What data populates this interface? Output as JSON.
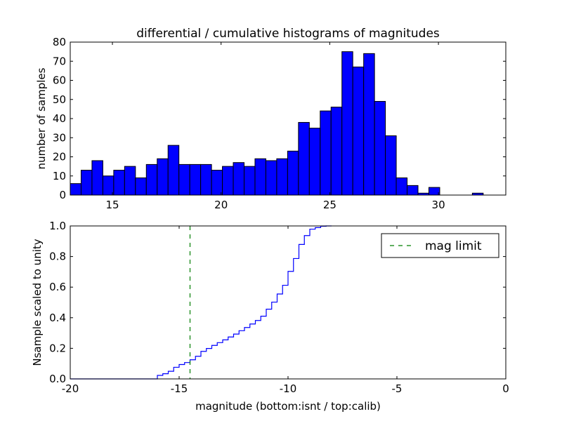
{
  "chart_data": [
    {
      "type": "bar",
      "title": "differential / cumulative histograms of magnitudes",
      "xlabel": "",
      "ylabel": "number of samples",
      "xlim": [
        13.06,
        33.1
      ],
      "ylim": [
        0,
        80
      ],
      "bin_start": 13.06,
      "bin_width": 0.5,
      "xticks": [
        15,
        20,
        25,
        30
      ],
      "yticks": [
        0,
        10,
        20,
        30,
        40,
        50,
        60,
        70,
        80
      ],
      "values": [
        6,
        13,
        18,
        10,
        13,
        15,
        9,
        16,
        19,
        26,
        16,
        16,
        16,
        13,
        15,
        17,
        15,
        19,
        18,
        19,
        23,
        38,
        35,
        44,
        46,
        75,
        67,
        74,
        49,
        31,
        9,
        5,
        1,
        4,
        0,
        0,
        0,
        1,
        0,
        0
      ],
      "color": "#0000ff"
    },
    {
      "type": "line",
      "title": "",
      "xlabel": "magnitude (bottom:isnt / top:calib)",
      "ylabel": "Nsample scaled to unity",
      "xlim": [
        -20,
        0
      ],
      "ylim": [
        0,
        1
      ],
      "xticks": [
        -20,
        -15,
        -10,
        -5,
        0
      ],
      "yticks": [
        0.0,
        0.2,
        0.4,
        0.6,
        0.8,
        1.0
      ],
      "step_start": -16.0,
      "step_width": 0.25,
      "values": [
        0.023,
        0.034,
        0.05,
        0.076,
        0.094,
        0.107,
        0.125,
        0.148,
        0.18,
        0.199,
        0.219,
        0.237,
        0.255,
        0.274,
        0.293,
        0.315,
        0.336,
        0.359,
        0.382,
        0.41,
        0.456,
        0.502,
        0.555,
        0.612,
        0.703,
        0.787,
        0.879,
        0.937,
        0.979,
        0.989,
        0.998,
        1.0
      ],
      "color": "#0000ff",
      "mag_limit": -14.5,
      "mag_limit_color": "#007f00",
      "legend": {
        "label": "mag limit",
        "placement": "top-right"
      }
    }
  ]
}
